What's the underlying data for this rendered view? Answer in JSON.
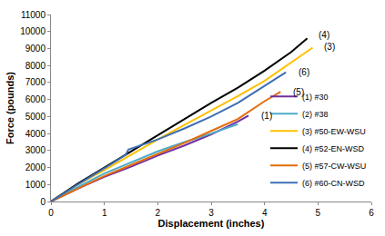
{
  "chart_data": {
    "type": "line",
    "x_label": "Displacement (inches)",
    "y_label": "Force (pounds)",
    "xlim": [
      0,
      6
    ],
    "xticks": [
      0,
      1,
      2,
      3,
      4,
      5,
      6
    ],
    "ylim": [
      0,
      11000
    ],
    "yticks": [
      0,
      1000,
      2000,
      3000,
      4000,
      5000,
      6000,
      7000,
      8000,
      9000,
      10000,
      11000
    ],
    "grid": false,
    "legend": "right",
    "series": [
      {
        "name": "(1) #30",
        "color": "#7030a0",
        "x": [
          0,
          0.5,
          1,
          1.5,
          2,
          2.5,
          3,
          3.5,
          3.7
        ],
        "values": [
          0,
          750,
          1450,
          2050,
          2700,
          3300,
          3950,
          4700,
          5050
        ]
      },
      {
        "name": "(2) #38",
        "color": "#4bacc6",
        "x": [
          0,
          0.5,
          1,
          1.5,
          2,
          2.5,
          3,
          3.5
        ],
        "values": [
          0,
          850,
          1650,
          2300,
          2950,
          3500,
          4000,
          4550
        ]
      },
      {
        "name": "(3) #50-EW-WSU",
        "color": "#ffc000",
        "x": [
          0,
          0.5,
          1,
          1.5,
          2,
          2.5,
          3,
          3.5,
          4,
          4.5,
          4.9
        ],
        "values": [
          0,
          1000,
          1850,
          2750,
          3650,
          4500,
          5350,
          6200,
          7100,
          8200,
          9050
        ]
      },
      {
        "name": "(4) #52-EN-WSD",
        "color": "#000000",
        "x": [
          0,
          0.5,
          1,
          1.5,
          2,
          2.5,
          3,
          3.5,
          4,
          4.5,
          4.8
        ],
        "values": [
          0,
          1050,
          2000,
          2950,
          3900,
          4850,
          5800,
          6700,
          7700,
          8800,
          9600
        ]
      },
      {
        "name": "(5) #57-CW-WSU",
        "color": "#e46c0a",
        "x": [
          0,
          0.5,
          1,
          1.5,
          2,
          2.5,
          3,
          3.5,
          4,
          4.3
        ],
        "values": [
          0,
          750,
          1500,
          2150,
          2800,
          3450,
          4150,
          4850,
          5900,
          6450
        ]
      },
      {
        "name": "(6) #60-CN-WSD",
        "color": "#3d6fb5",
        "x": [
          0,
          0.5,
          1,
          1.4,
          1.45,
          2,
          2.5,
          3,
          3.5,
          4,
          4.4
        ],
        "values": [
          0,
          1000,
          1950,
          2750,
          3050,
          3650,
          4300,
          5000,
          5800,
          6800,
          7600
        ]
      }
    ],
    "annotations": [
      {
        "text": "(1)",
        "x": 3.9,
        "y": 5050
      },
      {
        "text": "(3)",
        "x": 5.08,
        "y": 9100
      },
      {
        "text": "(4)",
        "x": 4.97,
        "y": 9800
      },
      {
        "text": "(5)",
        "x": 4.5,
        "y": 6450
      },
      {
        "text": "(6)",
        "x": 4.6,
        "y": 7600
      }
    ]
  }
}
